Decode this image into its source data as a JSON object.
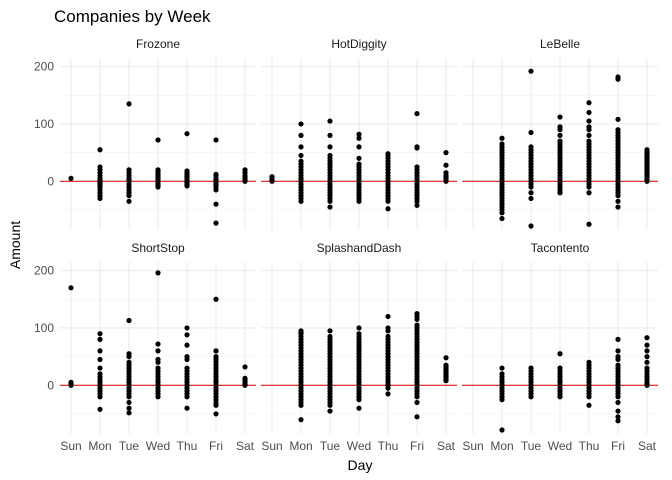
{
  "chart_data": {
    "type": "scatter",
    "title": "Companies by Week",
    "xlabel": "Day",
    "ylabel": "Amount",
    "x_categories": [
      "Sun",
      "Mon",
      "Tue",
      "Wed",
      "Thu",
      "Fri",
      "Sat"
    ],
    "y_ticks": [
      0,
      100,
      200
    ],
    "ylim": [
      -85,
      215
    ],
    "hline": {
      "y": 0,
      "color": "#e31a1c"
    },
    "point_color": "#000000",
    "grid": true,
    "facets": [
      {
        "name": "Frozone",
        "points": {
          "Sun": [
            5
          ],
          "Mon": [
            55,
            25,
            20,
            15,
            10,
            5,
            2,
            0,
            -3,
            -5,
            -8,
            -10,
            -15,
            -20,
            -25,
            -30
          ],
          "Tue": [
            135,
            20,
            15,
            10,
            5,
            2,
            0,
            -5,
            -10,
            -15,
            -20,
            -25,
            -35
          ],
          "Wed": [
            72,
            20,
            18,
            15,
            12,
            10,
            8,
            5,
            2,
            0,
            -2,
            -5,
            -8,
            -10
          ],
          "Thu": [
            83,
            18,
            15,
            12,
            10,
            8,
            5,
            2,
            0,
            -2,
            -5,
            -8
          ],
          "Fri": [
            72,
            12,
            10,
            5,
            2,
            0,
            -2,
            -5,
            -8,
            -10,
            -15,
            -40,
            -73
          ],
          "Sat": [
            20,
            15,
            10,
            8,
            5,
            2,
            0
          ]
        }
      },
      {
        "name": "HotDiggity",
        "points": {
          "Sun": [
            8,
            5,
            2,
            0
          ],
          "Mon": [
            100,
            80,
            60,
            45,
            35,
            30,
            25,
            20,
            15,
            10,
            5,
            2,
            0,
            -5,
            -10,
            -15,
            -20,
            -25,
            -30,
            -35
          ],
          "Tue": [
            105,
            80,
            60,
            45,
            40,
            35,
            30,
            25,
            20,
            15,
            10,
            5,
            0,
            -5,
            -10,
            -15,
            -20,
            -25,
            -30,
            -35,
            -45
          ],
          "Wed": [
            82,
            75,
            60,
            40,
            30,
            25,
            20,
            15,
            10,
            5,
            0,
            -5,
            -10,
            -15,
            -20,
            -25,
            -30,
            -35
          ],
          "Thu": [
            48,
            45,
            40,
            35,
            30,
            25,
            20,
            15,
            10,
            5,
            0,
            -5,
            -10,
            -15,
            -20,
            -25,
            -30,
            -35,
            -48
          ],
          "Fri": [
            118,
            60,
            58,
            25,
            20,
            15,
            10,
            5,
            0,
            -5,
            -10,
            -15,
            -20,
            -25,
            -30,
            -35,
            -42
          ],
          "Sat": [
            50,
            28,
            15,
            10,
            8,
            5,
            2,
            0
          ]
        }
      },
      {
        "name": "LeBelle",
        "points": {
          "Sun": [],
          "Mon": [
            75,
            65,
            60,
            55,
            50,
            45,
            40,
            35,
            30,
            25,
            20,
            15,
            10,
            5,
            0,
            -5,
            -10,
            -15,
            -20,
            -25,
            -30,
            -35,
            -40,
            -45,
            -50,
            -55,
            -65
          ],
          "Tue": [
            192,
            85,
            60,
            55,
            50,
            45,
            40,
            35,
            30,
            25,
            20,
            15,
            10,
            5,
            0,
            -5,
            -10,
            -20,
            -30,
            -78
          ],
          "Wed": [
            112,
            95,
            90,
            80,
            70,
            65,
            60,
            55,
            50,
            45,
            40,
            35,
            30,
            25,
            20,
            15,
            10,
            5,
            0,
            -5,
            -10,
            -15,
            -20
          ],
          "Thu": [
            137,
            120,
            105,
            95,
            90,
            80,
            70,
            65,
            60,
            55,
            50,
            45,
            40,
            35,
            30,
            25,
            20,
            15,
            10,
            5,
            0,
            -5,
            -10,
            -20,
            -75
          ],
          "Fri": [
            182,
            178,
            108,
            90,
            85,
            80,
            75,
            70,
            65,
            60,
            55,
            50,
            45,
            40,
            35,
            30,
            25,
            20,
            15,
            10,
            5,
            0,
            -5,
            -10,
            -15,
            -20,
            -25,
            -35,
            -45
          ],
          "Sat": [
            55,
            52,
            50,
            47,
            45,
            42,
            40,
            37,
            35,
            32,
            30,
            27,
            25,
            22,
            20,
            17,
            15,
            12,
            10,
            7,
            5,
            2,
            0
          ]
        }
      },
      {
        "name": "ShortStop",
        "points": {
          "Sun": [
            170,
            5,
            3,
            0
          ],
          "Mon": [
            90,
            80,
            60,
            45,
            30,
            20,
            15,
            10,
            5,
            0,
            -5,
            -10,
            -15,
            -20,
            -42
          ],
          "Tue": [
            113,
            55,
            50,
            40,
            35,
            30,
            25,
            20,
            15,
            10,
            5,
            0,
            -5,
            -10,
            -15,
            -20,
            -30,
            -40,
            -48
          ],
          "Wed": [
            196,
            72,
            60,
            45,
            40,
            30,
            25,
            20,
            15,
            10,
            5,
            0,
            -5,
            -10,
            -15,
            -20
          ],
          "Thu": [
            100,
            88,
            70,
            50,
            45,
            30,
            25,
            20,
            15,
            10,
            5,
            0,
            -5,
            -10,
            -15,
            -20,
            -40
          ],
          "Fri": [
            150,
            60,
            50,
            45,
            40,
            35,
            30,
            25,
            20,
            15,
            10,
            5,
            0,
            -5,
            -10,
            -15,
            -20,
            -25,
            -30,
            -35,
            -50
          ],
          "Sat": [
            32,
            12,
            10,
            8,
            5,
            2,
            0
          ]
        }
      },
      {
        "name": "SplashandDash",
        "points": {
          "Sun": [],
          "Mon": [
            95,
            92,
            90,
            85,
            80,
            75,
            70,
            65,
            60,
            55,
            50,
            45,
            40,
            35,
            30,
            25,
            20,
            15,
            10,
            5,
            0,
            -5,
            -10,
            -15,
            -20,
            -25,
            -30,
            -35,
            -60
          ],
          "Tue": [
            95,
            85,
            80,
            75,
            70,
            65,
            60,
            55,
            50,
            45,
            40,
            35,
            30,
            25,
            20,
            15,
            10,
            5,
            0,
            -5,
            -10,
            -15,
            -20,
            -25,
            -30,
            -35,
            -45
          ],
          "Wed": [
            100,
            90,
            85,
            80,
            75,
            70,
            65,
            60,
            55,
            50,
            45,
            40,
            35,
            30,
            25,
            20,
            15,
            10,
            5,
            0,
            -5,
            -10,
            -15,
            -20,
            -25,
            -40
          ],
          "Thu": [
            120,
            100,
            95,
            85,
            80,
            75,
            70,
            65,
            60,
            55,
            50,
            45,
            40,
            35,
            30,
            25,
            20,
            15,
            10,
            5,
            0,
            -5,
            -15
          ],
          "Fri": [
            125,
            120,
            115,
            105,
            100,
            95,
            90,
            85,
            80,
            75,
            70,
            65,
            60,
            55,
            50,
            45,
            40,
            35,
            30,
            25,
            20,
            15,
            10,
            5,
            0,
            -5,
            -10,
            -15,
            -20,
            -30,
            -55
          ],
          "Sat": [
            48,
            35,
            32,
            30,
            28,
            25,
            22,
            20,
            18,
            15,
            12,
            10,
            8
          ]
        }
      },
      {
        "name": "Tacontento",
        "points": {
          "Sun": [],
          "Mon": [
            30,
            20,
            15,
            10,
            5,
            0,
            -5,
            -10,
            -15,
            -20,
            -25,
            -78
          ],
          "Tue": [
            30,
            25,
            20,
            15,
            10,
            5,
            0,
            -5,
            -10,
            -15,
            -20
          ],
          "Wed": [
            55,
            30,
            25,
            20,
            15,
            10,
            5,
            0,
            -5,
            -10,
            -15,
            -20
          ],
          "Thu": [
            40,
            35,
            30,
            25,
            20,
            15,
            10,
            5,
            0,
            -5,
            -10,
            -15,
            -20,
            -35
          ],
          "Fri": [
            80,
            60,
            50,
            45,
            35,
            30,
            25,
            20,
            15,
            10,
            5,
            0,
            -5,
            -10,
            -15,
            -20,
            -30,
            -45,
            -55,
            -62
          ],
          "Sat": [
            83,
            70,
            60,
            50,
            40,
            30,
            25,
            20,
            15,
            10,
            5,
            2,
            0
          ]
        }
      }
    ]
  }
}
